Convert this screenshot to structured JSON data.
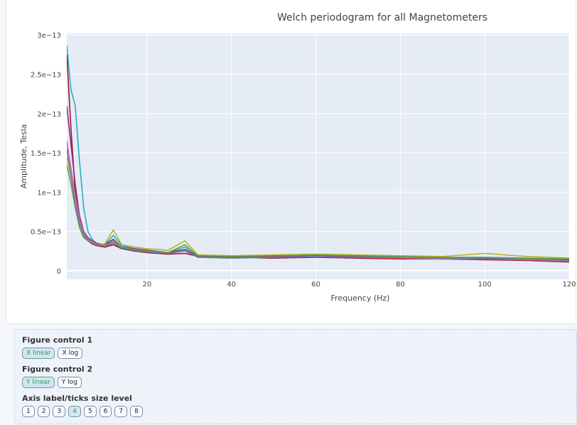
{
  "chart_data": {
    "type": "line",
    "title": "Welch periodogram for all Magnetometers",
    "x_label": "Frequency (Hz)",
    "y_label": "Amplitude, Tesla",
    "x": [
      1,
      2,
      3,
      4,
      5,
      6,
      7,
      8,
      10,
      12,
      14,
      17,
      20,
      25,
      29,
      32,
      40,
      50,
      60,
      70,
      80,
      90,
      100,
      110,
      120
    ],
    "xlim": [
      1,
      120
    ],
    "xticks": [
      20,
      40,
      60,
      80,
      100,
      120
    ],
    "ylim": [
      -1.1e-14,
      3.02e-13
    ],
    "yticks": [
      0,
      {
        "value": 5e-14,
        "label": "0.5e−13"
      },
      {
        "value": 1e-13,
        "label": "1e−13"
      },
      {
        "value": 1.5e-13,
        "label": "1.5e−13"
      },
      {
        "value": 2e-13,
        "label": "2e−13"
      },
      {
        "value": 2.5e-13,
        "label": "2.5e−13"
      },
      {
        "value": 3e-13,
        "label": "3e−13"
      }
    ],
    "grid": true,
    "series": [
      {
        "color": "#2ab0b8",
        "values": [
          2.87e-13,
          2.3e-13,
          2.1e-13,
          1.4e-13,
          8e-14,
          5e-14,
          4e-14,
          3.5e-14,
          3.3e-14,
          4.5e-14,
          3.2e-14,
          2.8e-14,
          2.6e-14,
          2.3e-14,
          3e-14,
          1.8e-14,
          1.7e-14,
          1.8e-14,
          2e-14,
          1.9e-14,
          1.8e-14,
          1.7e-14,
          1.6e-14,
          1.5e-14,
          1.3e-14
        ]
      },
      {
        "color": "#a0122a",
        "values": [
          2.75e-13,
          1.8e-13,
          1e-13,
          6e-14,
          4.5e-14,
          3.8e-14,
          3.4e-14,
          3.2e-14,
          3e-14,
          3.3e-14,
          2.8e-14,
          2.5e-14,
          2.3e-14,
          2.1e-14,
          2.2e-14,
          1.8e-14,
          1.7e-14,
          1.6e-14,
          1.7e-14,
          1.6e-14,
          1.5e-14,
          1.5e-14,
          1.4e-14,
          1.3e-14,
          1.1e-14
        ]
      },
      {
        "color": "#8e2a8e",
        "values": [
          2.1e-13,
          1.6e-13,
          1.1e-13,
          7e-14,
          5e-14,
          4.2e-14,
          3.8e-14,
          3.5e-14,
          3.3e-14,
          4e-14,
          3e-14,
          2.8e-14,
          2.6e-14,
          2.3e-14,
          2.7e-14,
          1.8e-14,
          1.7e-14,
          1.8e-14,
          1.9e-14,
          1.8e-14,
          1.8e-14,
          1.6e-14,
          1.6e-14,
          1.5e-14,
          1.4e-14
        ]
      },
      {
        "color": "#b8b41a",
        "values": [
          1.45e-13,
          1.2e-13,
          9e-14,
          6e-14,
          4.5e-14,
          4e-14,
          3.6e-14,
          3.4e-14,
          3.4e-14,
          5.2e-14,
          3.3e-14,
          3e-14,
          2.8e-14,
          2.6e-14,
          3.8e-14,
          2e-14,
          1.9e-14,
          2e-14,
          2.1e-14,
          2e-14,
          1.9e-14,
          1.8e-14,
          2.2e-14,
          1.8e-14,
          1.6e-14
        ]
      },
      {
        "color": "#5aa832",
        "values": [
          1.35e-13,
          1.1e-13,
          8e-14,
          5.5e-14,
          4.2e-14,
          3.8e-14,
          3.5e-14,
          3.3e-14,
          3.2e-14,
          3.8e-14,
          3e-14,
          2.7e-14,
          2.5e-14,
          2.3e-14,
          3.3e-14,
          1.9e-14,
          1.8e-14,
          1.9e-14,
          2e-14,
          1.9e-14,
          1.8e-14,
          1.7e-14,
          1.7e-14,
          1.6e-14,
          1.5e-14
        ]
      },
      {
        "color": "#d6609a",
        "values": [
          1.65e-13,
          1.3e-13,
          9.5e-14,
          6.5e-14,
          4.8e-14,
          4e-14,
          3.7e-14,
          3.4e-14,
          3.2e-14,
          3.6e-14,
          2.9e-14,
          2.6e-14,
          2.4e-14,
          2.2e-14,
          2.5e-14,
          1.7e-14,
          1.6e-14,
          1.7e-14,
          1.8e-14,
          1.7e-14,
          1.6e-14,
          1.5e-14,
          1.5e-14,
          1.4e-14,
          1.2e-14
        ]
      },
      {
        "color": "#6a7fa8",
        "values": [
          1.55e-13,
          1.2e-13,
          8.5e-14,
          6e-14,
          4.5e-14,
          3.9e-14,
          3.5e-14,
          3.3e-14,
          3.1e-14,
          3.5e-14,
          2.9e-14,
          2.6e-14,
          2.4e-14,
          2.2e-14,
          2.6e-14,
          1.7e-14,
          1.6e-14,
          1.7e-14,
          1.8e-14,
          1.7e-14,
          1.7e-14,
          1.6e-14,
          1.5e-14,
          1.5e-14,
          1.3e-14
        ]
      }
    ]
  },
  "controls": [
    {
      "title": "Figure control 1",
      "buttons": [
        "X linear",
        "X log"
      ],
      "active": 0
    },
    {
      "title": "Figure control 2",
      "buttons": [
        "Y linear",
        "Y log"
      ],
      "active": 0
    },
    {
      "title": "Axis label/ticks size level",
      "buttons": [
        "1",
        "2",
        "3",
        "4",
        "5",
        "6",
        "7",
        "8"
      ],
      "active": 3
    }
  ]
}
